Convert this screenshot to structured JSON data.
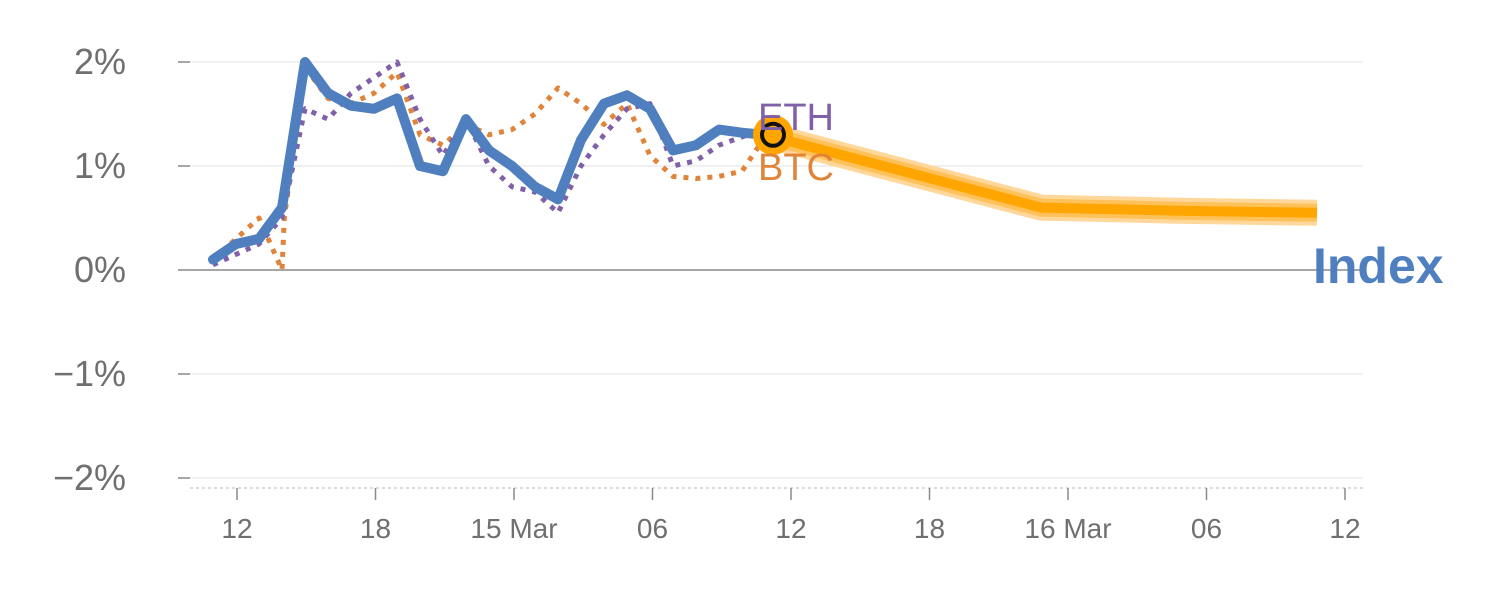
{
  "chart_data": {
    "type": "line",
    "ylim": [
      -2,
      2
    ],
    "y_ticks": [
      2,
      1,
      0,
      -1,
      -2
    ],
    "y_tick_labels": [
      "2%",
      "1%",
      "0%",
      "−1%",
      "−2%"
    ],
    "x_tick_labels": [
      "12",
      "18",
      "15 Mar",
      "06",
      "12",
      "18",
      "16 Mar",
      "06",
      "12"
    ],
    "x_tick_index": [
      1,
      7,
      13,
      19,
      25,
      31,
      37,
      43,
      49
    ],
    "grid": true,
    "series": [
      {
        "name": "Index",
        "color": "#4f7fbf",
        "style": "solid",
        "x": [
          0,
          1,
          2,
          3,
          4,
          5,
          6,
          7,
          8,
          9,
          10,
          11,
          12,
          13,
          14,
          15,
          16,
          17,
          18,
          19,
          20,
          21,
          22,
          23,
          24
        ],
        "values": [
          0.1,
          0.25,
          0.3,
          0.6,
          2.0,
          1.7,
          1.58,
          1.55,
          1.65,
          1.0,
          0.95,
          1.45,
          1.15,
          1.0,
          0.8,
          0.68,
          1.25,
          1.6,
          1.68,
          1.55,
          1.15,
          1.2,
          1.35,
          1.32,
          1.3
        ]
      },
      {
        "name": "ETH",
        "color": "#8061a9",
        "style": "dotted",
        "x": [
          0,
          1,
          2,
          3,
          4,
          5,
          6,
          7,
          8,
          9,
          10,
          11,
          12,
          13,
          14,
          15,
          16,
          17,
          18,
          19,
          20,
          21,
          22,
          23,
          24
        ],
        "values": [
          0.05,
          0.15,
          0.25,
          0.5,
          1.55,
          1.45,
          1.7,
          1.85,
          2.0,
          1.45,
          1.1,
          1.45,
          1.0,
          0.8,
          0.75,
          0.55,
          1.0,
          1.3,
          1.55,
          1.6,
          1.0,
          1.05,
          1.2,
          1.28,
          1.35
        ]
      },
      {
        "name": "BTC",
        "color": "#e0843a",
        "style": "dotted",
        "x": [
          0,
          1,
          2,
          3,
          3.1,
          4,
          5,
          6,
          7,
          8,
          9,
          10,
          11,
          12,
          13,
          14,
          15,
          16,
          17,
          18,
          19,
          20,
          21,
          22,
          23,
          24
        ],
        "values": [
          0.1,
          0.3,
          0.5,
          0.0,
          0.5,
          1.95,
          1.65,
          1.6,
          1.7,
          1.9,
          1.3,
          1.2,
          1.4,
          1.3,
          1.35,
          1.5,
          1.75,
          1.6,
          1.4,
          1.6,
          1.1,
          0.9,
          0.88,
          0.9,
          0.95,
          1.28
        ]
      }
    ],
    "forecast": {
      "color": "#ffa500",
      "x": [
        24,
        30,
        36,
        42,
        48
      ],
      "values": [
        1.3,
        0.95,
        0.6,
        0.57,
        0.55
      ]
    },
    "marker": {
      "x": 24,
      "value": 1.3
    },
    "labels": {
      "eth": "ETH",
      "btc": "BTC",
      "index": "Index"
    }
  }
}
